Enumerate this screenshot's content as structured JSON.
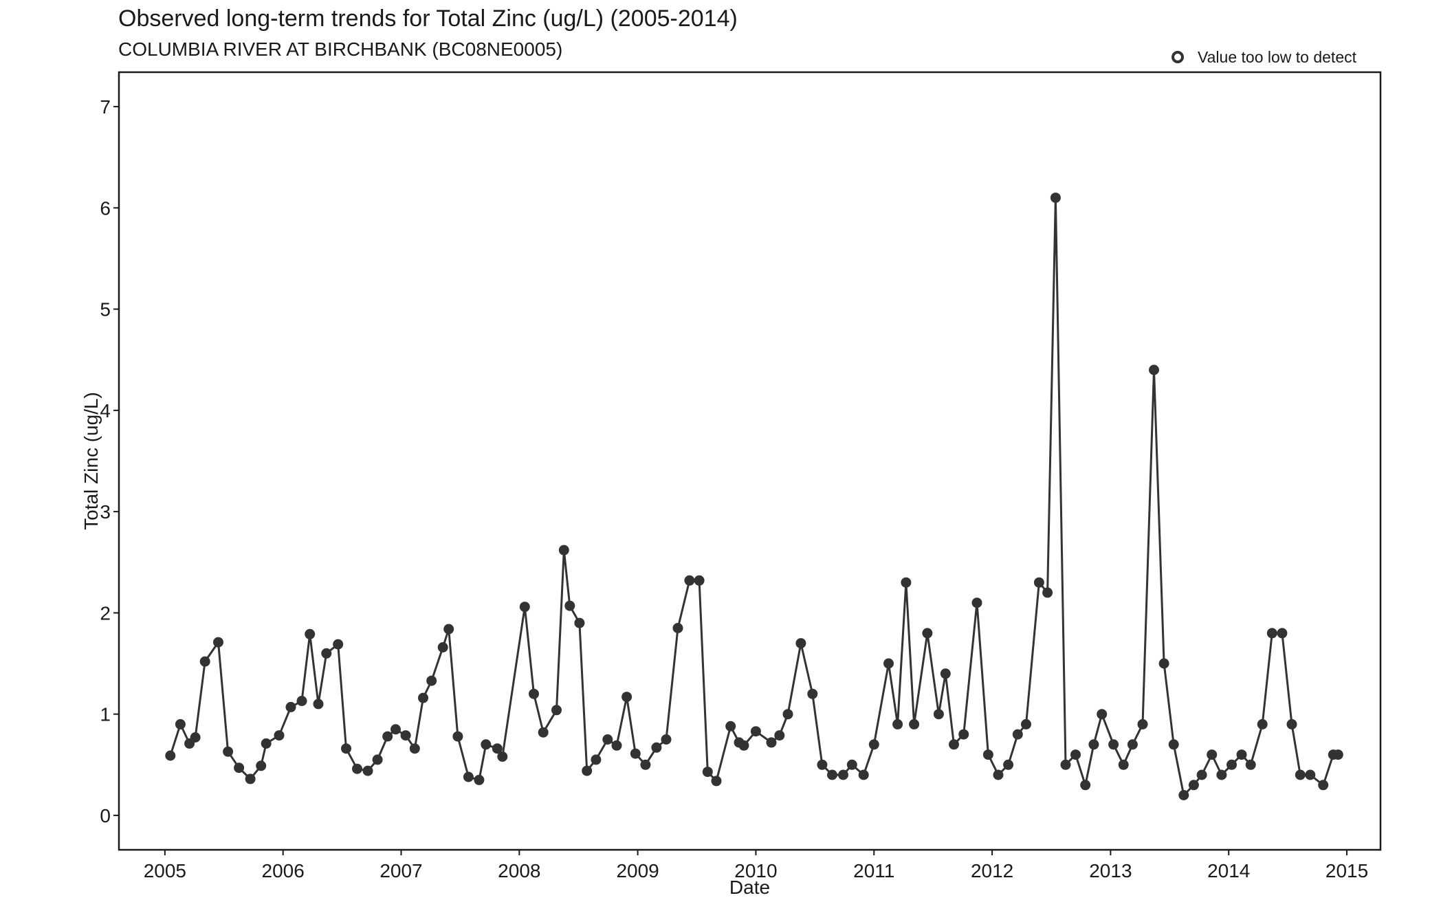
{
  "title": "Observed long-term trends for Total Zinc (ug/L) (2005-2014)",
  "subtitle": "COLUMBIA RIVER AT BIRCHBANK (BC08NE0005)",
  "legend": {
    "label": "Value too low to detect",
    "marker": "hollow-circle",
    "position": "top-right"
  },
  "colors": {
    "series": "#333333",
    "axis": "#1a1a1a",
    "background": "#ffffff"
  },
  "chart_data": {
    "type": "line",
    "title": "Observed long-term trends for Total Zinc (ug/L) (2005-2014)",
    "xlabel": "Date",
    "ylabel": "Total Zinc (ug/L)",
    "xlim": [
      "2004-08-12",
      "2015-04-15"
    ],
    "ylim": [
      -0.34,
      7.34
    ],
    "x_ticks": [
      "2005-01-01",
      "2006-01-01",
      "2007-01-01",
      "2008-01-01",
      "2009-01-01",
      "2010-01-01",
      "2011-01-01",
      "2012-01-01",
      "2013-01-01",
      "2014-01-01",
      "2015-01-01"
    ],
    "x_tick_labels": [
      "2005",
      "2006",
      "2007",
      "2008",
      "2009",
      "2010",
      "2011",
      "2012",
      "2013",
      "2014",
      "2015"
    ],
    "y_ticks": [
      0,
      1,
      2,
      3,
      4,
      5,
      6,
      7
    ],
    "grid": false,
    "series": [
      {
        "points": [
          [
            "2005-01-18",
            0.59
          ],
          [
            "2005-02-18",
            0.9
          ],
          [
            "2005-03-18",
            0.71
          ],
          [
            "2005-04-05",
            0.77
          ],
          [
            "2005-05-05",
            1.52
          ],
          [
            "2005-06-15",
            1.71
          ],
          [
            "2005-07-15",
            0.63
          ],
          [
            "2005-08-18",
            0.47
          ],
          [
            "2005-09-22",
            0.36
          ],
          [
            "2005-10-25",
            0.49
          ],
          [
            "2005-11-10",
            0.71
          ],
          [
            "2005-12-20",
            0.79
          ],
          [
            "2006-01-25",
            1.07
          ],
          [
            "2006-02-28",
            1.13
          ],
          [
            "2006-03-25",
            1.79
          ],
          [
            "2006-04-20",
            1.1
          ],
          [
            "2006-05-15",
            1.6
          ],
          [
            "2006-06-20",
            1.69
          ],
          [
            "2006-07-15",
            0.66
          ],
          [
            "2006-08-18",
            0.46
          ],
          [
            "2006-09-20",
            0.44
          ],
          [
            "2006-10-20",
            0.55
          ],
          [
            "2006-11-20",
            0.78
          ],
          [
            "2006-12-15",
            0.85
          ],
          [
            "2007-01-15",
            0.79
          ],
          [
            "2007-02-12",
            0.66
          ],
          [
            "2007-03-10",
            1.16
          ],
          [
            "2007-04-05",
            1.33
          ],
          [
            "2007-05-10",
            1.66
          ],
          [
            "2007-05-28",
            1.84
          ],
          [
            "2007-06-25",
            0.78
          ],
          [
            "2007-07-28",
            0.38
          ],
          [
            "2007-08-30",
            0.35
          ],
          [
            "2007-09-20",
            0.7
          ],
          [
            "2007-10-25",
            0.66
          ],
          [
            "2007-11-10",
            0.58
          ],
          [
            "2008-01-18",
            2.06
          ],
          [
            "2008-02-15",
            1.2
          ],
          [
            "2008-03-15",
            0.82
          ],
          [
            "2008-04-25",
            1.04
          ],
          [
            "2008-05-18",
            2.62
          ],
          [
            "2008-06-05",
            2.07
          ],
          [
            "2008-07-05",
            1.9
          ],
          [
            "2008-07-28",
            0.44
          ],
          [
            "2008-08-25",
            0.55
          ],
          [
            "2008-09-30",
            0.75
          ],
          [
            "2008-10-28",
            0.69
          ],
          [
            "2008-11-28",
            1.17
          ],
          [
            "2008-12-25",
            0.61
          ],
          [
            "2009-01-25",
            0.5
          ],
          [
            "2009-02-28",
            0.67
          ],
          [
            "2009-03-30",
            0.75
          ],
          [
            "2009-05-05",
            1.85
          ],
          [
            "2009-06-10",
            2.32
          ],
          [
            "2009-07-10",
            2.32
          ],
          [
            "2009-08-05",
            0.43
          ],
          [
            "2009-09-01",
            0.34
          ],
          [
            "2009-10-15",
            0.88
          ],
          [
            "2009-11-10",
            0.72
          ],
          [
            "2009-11-25",
            0.69
          ],
          [
            "2010-01-01",
            0.83
          ],
          [
            "2010-02-18",
            0.72
          ],
          [
            "2010-03-15",
            0.79
          ],
          [
            "2010-04-10",
            1.0
          ],
          [
            "2010-05-20",
            1.7
          ],
          [
            "2010-06-25",
            1.2
          ],
          [
            "2010-07-25",
            0.5
          ],
          [
            "2010-08-25",
            0.4
          ],
          [
            "2010-09-28",
            0.4
          ],
          [
            "2010-10-25",
            0.5
          ],
          [
            "2010-11-30",
            0.4
          ],
          [
            "2011-01-01",
            0.7
          ],
          [
            "2011-02-15",
            1.5
          ],
          [
            "2011-03-15",
            0.9
          ],
          [
            "2011-04-10",
            2.3
          ],
          [
            "2011-05-05",
            0.9
          ],
          [
            "2011-06-15",
            1.8
          ],
          [
            "2011-07-20",
            1.0
          ],
          [
            "2011-08-10",
            1.4
          ],
          [
            "2011-09-05",
            0.7
          ],
          [
            "2011-10-05",
            0.8
          ],
          [
            "2011-11-15",
            2.1
          ],
          [
            "2011-12-20",
            0.6
          ],
          [
            "2012-01-20",
            0.4
          ],
          [
            "2012-02-20",
            0.5
          ],
          [
            "2012-03-20",
            0.8
          ],
          [
            "2012-04-15",
            0.9
          ],
          [
            "2012-05-25",
            2.3
          ],
          [
            "2012-06-20",
            2.2
          ],
          [
            "2012-07-15",
            6.1
          ],
          [
            "2012-08-15",
            0.5
          ],
          [
            "2012-09-15",
            0.6
          ],
          [
            "2012-10-15",
            0.3
          ],
          [
            "2012-11-10",
            0.7
          ],
          [
            "2012-12-05",
            1.0
          ],
          [
            "2013-01-10",
            0.7
          ],
          [
            "2013-02-10",
            0.5
          ],
          [
            "2013-03-10",
            0.7
          ],
          [
            "2013-04-10",
            0.9
          ],
          [
            "2013-05-15",
            4.4
          ],
          [
            "2013-06-15",
            1.5
          ],
          [
            "2013-07-15",
            0.7
          ],
          [
            "2013-08-15",
            0.2
          ],
          [
            "2013-09-15",
            0.3
          ],
          [
            "2013-10-10",
            0.4
          ],
          [
            "2013-11-10",
            0.6
          ],
          [
            "2013-12-10",
            0.4
          ],
          [
            "2014-01-10",
            0.5
          ],
          [
            "2014-02-10",
            0.6
          ],
          [
            "2014-03-10",
            0.5
          ],
          [
            "2014-04-15",
            0.9
          ],
          [
            "2014-05-15",
            1.8
          ],
          [
            "2014-06-15",
            1.8
          ],
          [
            "2014-07-15",
            0.9
          ],
          [
            "2014-08-10",
            0.4
          ],
          [
            "2014-09-10",
            0.4
          ],
          [
            "2014-10-20",
            0.3
          ],
          [
            "2014-11-20",
            0.6
          ],
          [
            "2014-12-05",
            0.6
          ]
        ]
      }
    ]
  }
}
